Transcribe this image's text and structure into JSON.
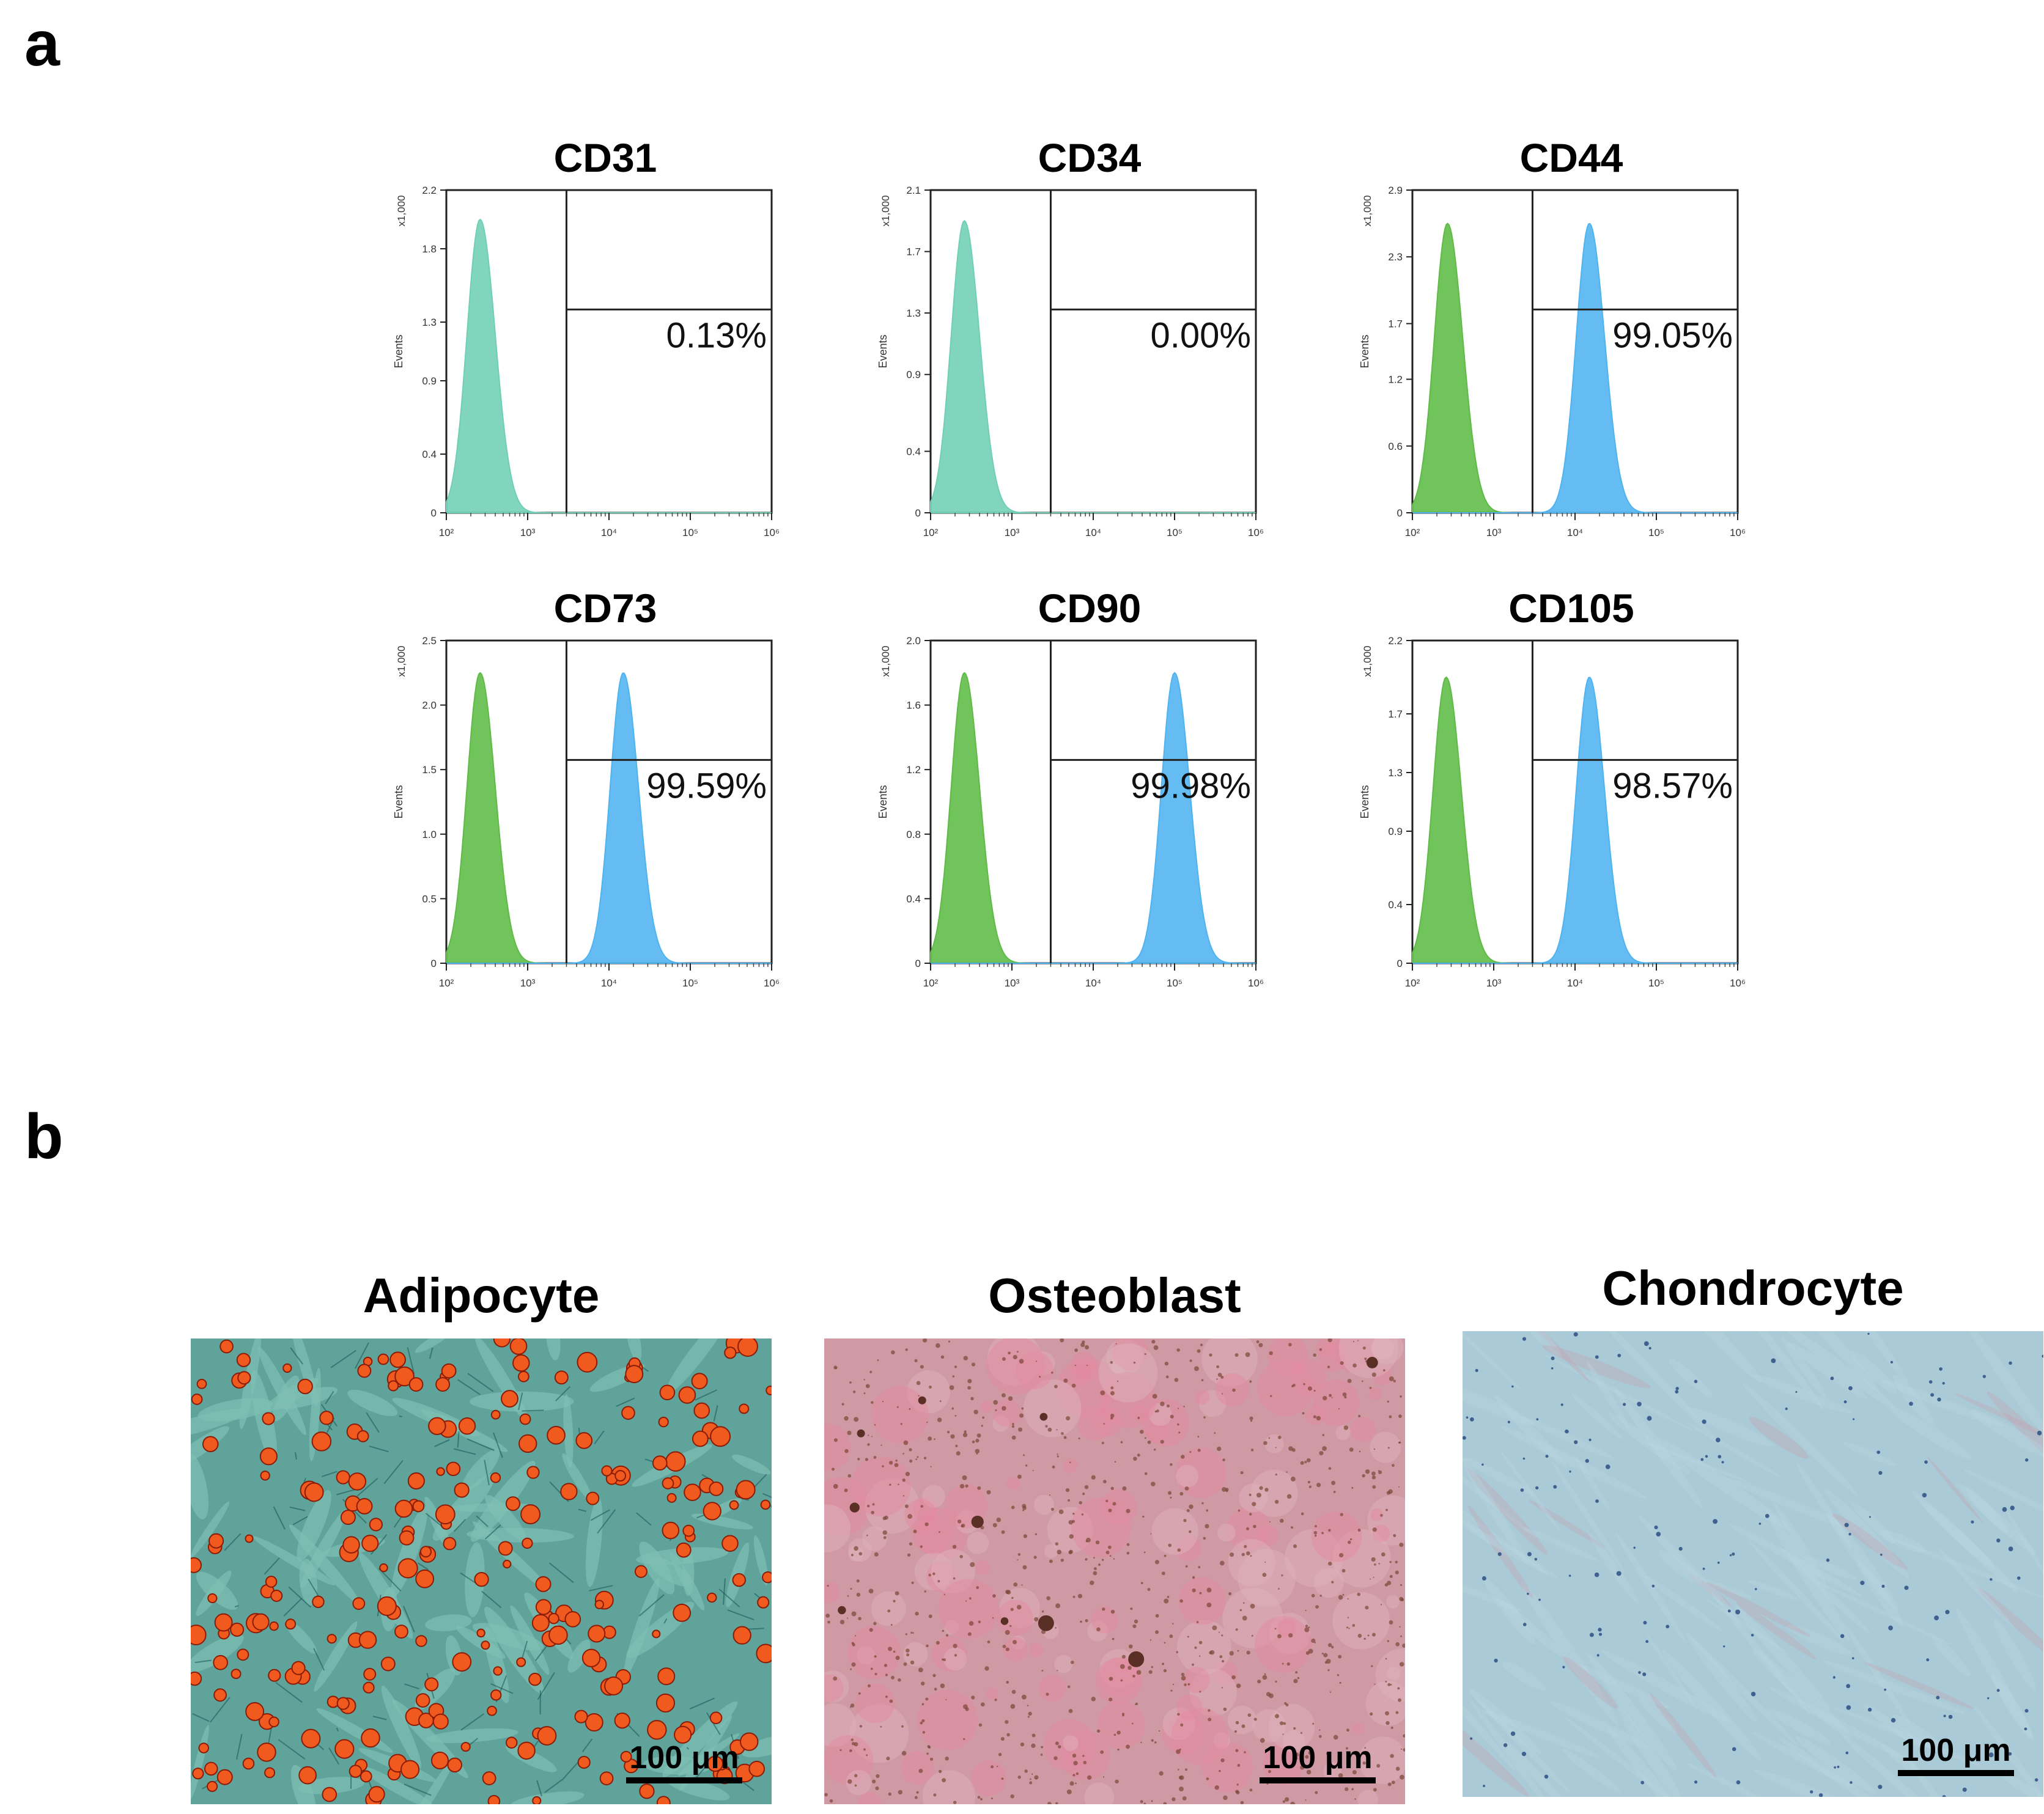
{
  "panel_a_label": "a",
  "panel_b_label": "b",
  "chart_data": [
    {
      "type": "area",
      "title": "CD31",
      "xlabel": "",
      "ylabel": "Events",
      "y_multiplier": "x1,000",
      "x_scale": "log",
      "xlim": [
        100,
        1000000
      ],
      "x_ticks": [
        "10²",
        "10³",
        "10⁴",
        "10⁵",
        "10⁶"
      ],
      "ylim": [
        0,
        2.2
      ],
      "y_ticks": [
        0,
        0.4,
        0.9,
        1.3,
        1.8,
        2.2
      ],
      "gate_position": 3000,
      "gate_percent": "0.13%",
      "series": [
        {
          "color": "#6fcfb4",
          "peak_x": 260,
          "peak_height": 2.0
        }
      ]
    },
    {
      "type": "area",
      "title": "CD34",
      "xlabel": "",
      "ylabel": "Events",
      "y_multiplier": "x1,000",
      "x_scale": "log",
      "xlim": [
        100,
        1000000
      ],
      "x_ticks": [
        "10²",
        "10³",
        "10⁴",
        "10⁵",
        "10⁶"
      ],
      "ylim": [
        0,
        2.1
      ],
      "y_ticks": [
        0,
        0.4,
        0.9,
        1.3,
        1.7,
        2.1
      ],
      "gate_position": 3000,
      "gate_percent": "0.00%",
      "series": [
        {
          "color": "#6fcfb4",
          "peak_x": 260,
          "peak_height": 1.9
        }
      ]
    },
    {
      "type": "area",
      "title": "CD44",
      "xlabel": "",
      "ylabel": "Events",
      "y_multiplier": "x1,000",
      "x_scale": "log",
      "xlim": [
        100,
        1000000
      ],
      "x_ticks": [
        "10²",
        "10³",
        "10⁴",
        "10⁵",
        "10⁶"
      ],
      "ylim": [
        0,
        2.9
      ],
      "y_ticks": [
        0,
        0.6,
        1.2,
        1.7,
        2.3,
        2.9
      ],
      "gate_position": 3000,
      "gate_percent": "99.05%",
      "series": [
        {
          "color": "#5dbb46",
          "peak_x": 270,
          "peak_height": 2.6
        },
        {
          "color": "#4fb3f0",
          "peak_x": 15000,
          "peak_height": 2.6
        }
      ]
    },
    {
      "type": "area",
      "title": "CD73",
      "xlabel": "",
      "ylabel": "Events",
      "y_multiplier": "x1,000",
      "x_scale": "log",
      "xlim": [
        100,
        1000000
      ],
      "x_ticks": [
        "10²",
        "10³",
        "10⁴",
        "10⁵",
        "10⁶"
      ],
      "ylim": [
        0,
        2.5
      ],
      "y_ticks": [
        0,
        0.5,
        1.0,
        1.5,
        2.0,
        2.5
      ],
      "gate_position": 3000,
      "gate_percent": "99.59%",
      "series": [
        {
          "color": "#5dbb46",
          "peak_x": 260,
          "peak_height": 2.25
        },
        {
          "color": "#4fb3f0",
          "peak_x": 15000,
          "peak_height": 2.25
        }
      ]
    },
    {
      "type": "area",
      "title": "CD90",
      "xlabel": "",
      "ylabel": "Events",
      "y_multiplier": "x1,000",
      "x_scale": "log",
      "xlim": [
        100,
        1000000
      ],
      "x_ticks": [
        "10²",
        "10³",
        "10⁴",
        "10⁵",
        "10⁶"
      ],
      "ylim": [
        0,
        2.0
      ],
      "y_ticks": [
        0,
        0.4,
        0.8,
        1.2,
        1.6,
        2.0
      ],
      "gate_position": 3000,
      "gate_percent": "99.98%",
      "series": [
        {
          "color": "#5dbb46",
          "peak_x": 260,
          "peak_height": 1.8
        },
        {
          "color": "#4fb3f0",
          "peak_x": 100000,
          "peak_height": 1.8
        }
      ]
    },
    {
      "type": "area",
      "title": "CD105",
      "xlabel": "",
      "ylabel": "Events",
      "y_multiplier": "x1,000",
      "x_scale": "log",
      "xlim": [
        100,
        1000000
      ],
      "x_ticks": [
        "10²",
        "10³",
        "10⁴",
        "10⁵",
        "10⁶"
      ],
      "ylim": [
        0,
        2.2
      ],
      "y_ticks": [
        0,
        0.4,
        0.9,
        1.3,
        1.7,
        2.2
      ],
      "gate_position": 3000,
      "gate_percent": "98.57%",
      "series": [
        {
          "color": "#5dbb46",
          "peak_x": 260,
          "peak_height": 1.95
        },
        {
          "color": "#4fb3f0",
          "peak_x": 15000,
          "peak_height": 1.95
        }
      ]
    }
  ],
  "micrographs": [
    {
      "title": "Adipocyte",
      "scale_bar": "100 μm",
      "stain": "oil-red-o",
      "colors": {
        "base": "#5fa39a",
        "cell": "#7fbfb3",
        "dot": "#f05a1e",
        "dark": "#1e5a5a"
      }
    },
    {
      "title": "Osteoblast",
      "scale_bar": "100 μm",
      "stain": "alizarin-red",
      "colors": {
        "base": "#cf9aa4",
        "cell": "#e0b4bc",
        "dot": "#7a4636",
        "dark": "#5a2f26"
      }
    },
    {
      "title": "Chondrocyte",
      "scale_bar": "100 μm",
      "stain": "alcian-blue",
      "colors": {
        "base": "#a9cad6",
        "cell": "#b9d7e1",
        "dot": "#2b4f83",
        "dark": "#c7a2b2"
      }
    }
  ]
}
